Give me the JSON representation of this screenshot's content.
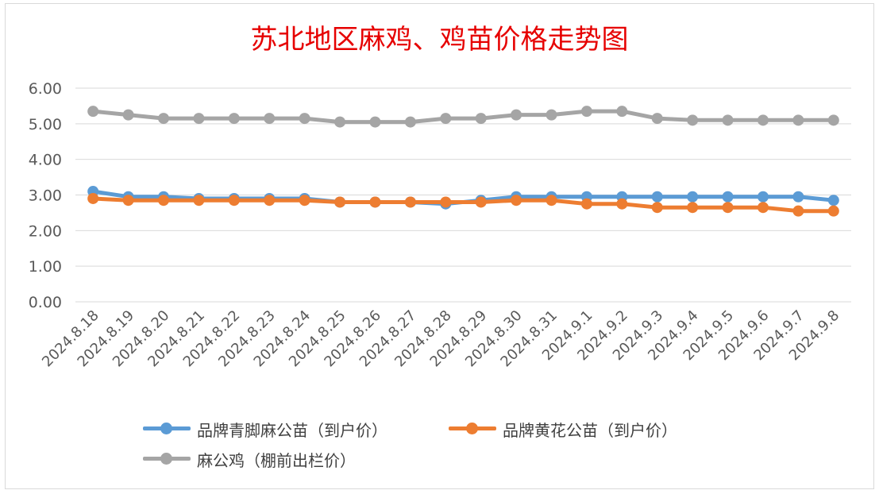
{
  "chart_data": {
    "type": "line",
    "title": "苏北地区麻鸡、鸡苗价格走势图",
    "categories": [
      "2024.8.18",
      "2024.8.19",
      "2024.8.20",
      "2024.8.21",
      "2024.8.22",
      "2024.8.23",
      "2024.8.24",
      "2024.8.25",
      "2024.8.26",
      "2024.8.27",
      "2024.8.28",
      "2024.8.29",
      "2024.8.30",
      "2024.8.31",
      "2024.9.1",
      "2024.9.2",
      "2024.9.3",
      "2024.9.4",
      "2024.9.5",
      "2024.9.6",
      "2024.9.7",
      "2024.9.8"
    ],
    "yticks": [
      "0.00",
      "1.00",
      "2.00",
      "3.00",
      "4.00",
      "5.00",
      "6.00"
    ],
    "ylim": [
      0,
      6
    ],
    "grid": true,
    "legend_position": "bottom",
    "series": [
      {
        "name": "品牌青脚麻公苗（到户价）",
        "color": "#5b9bd5",
        "values": [
          3.1,
          2.95,
          2.95,
          2.9,
          2.9,
          2.9,
          2.9,
          2.8,
          2.8,
          2.8,
          2.75,
          2.85,
          2.95,
          2.95,
          2.95,
          2.95,
          2.95,
          2.95,
          2.95,
          2.95,
          2.95,
          2.85
        ]
      },
      {
        "name": "品牌黄花公苗（到户价）",
        "color": "#ed7d31",
        "values": [
          2.9,
          2.85,
          2.85,
          2.85,
          2.85,
          2.85,
          2.85,
          2.8,
          2.8,
          2.8,
          2.8,
          2.8,
          2.85,
          2.85,
          2.75,
          2.75,
          2.65,
          2.65,
          2.65,
          2.65,
          2.55,
          2.55
        ]
      },
      {
        "name": "麻公鸡（棚前出栏价）",
        "color": "#a5a5a5",
        "values": [
          5.35,
          5.25,
          5.15,
          5.15,
          5.15,
          5.15,
          5.15,
          5.05,
          5.05,
          5.05,
          5.15,
          5.15,
          5.25,
          5.25,
          5.35,
          5.35,
          5.15,
          5.1,
          5.1,
          5.1,
          5.1,
          5.1
        ]
      }
    ]
  }
}
